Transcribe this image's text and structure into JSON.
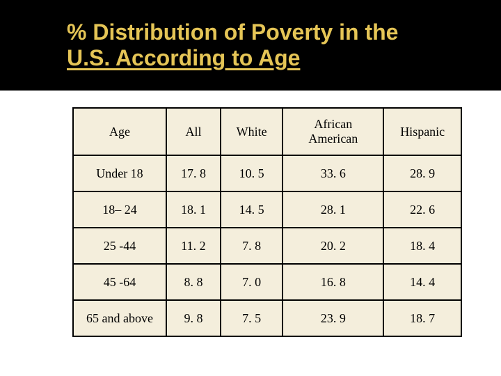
{
  "title": {
    "line1": "% Distribution of Poverty in the",
    "line2": "U.S. According to Age",
    "color": "#e5c556",
    "fontsize": 32,
    "band_background": "#000000"
  },
  "table": {
    "background_color": "#f4eedc",
    "border_color": "#000000",
    "border_width": 2,
    "cell_fontsize": 18,
    "text_color": "#000000",
    "columns": [
      {
        "key": "age",
        "label": "Age",
        "width_pct": 24
      },
      {
        "key": "all",
        "label": "All",
        "width_pct": 14
      },
      {
        "key": "white",
        "label": "White",
        "width_pct": 16
      },
      {
        "key": "africanamerican",
        "label": "African\nAmerican",
        "width_pct": 26
      },
      {
        "key": "hispanic",
        "label": "Hispanic",
        "width_pct": 20
      }
    ],
    "rows": [
      {
        "age": "Under 18",
        "all": "17. 8",
        "white": "10. 5",
        "africanamerican": "33. 6",
        "hispanic": "28. 9"
      },
      {
        "age": "18– 24",
        "all": "18. 1",
        "white": "14. 5",
        "africanamerican": "28. 1",
        "hispanic": "22. 6"
      },
      {
        "age": "25 -44",
        "all": "11. 2",
        "white": "7. 8",
        "africanamerican": "20. 2",
        "hispanic": "18. 4"
      },
      {
        "age": "45 -64",
        "all": "8. 8",
        "white": "7. 0",
        "africanamerican": "16. 8",
        "hispanic": "14. 4"
      },
      {
        "age": "65 and above",
        "all": "9. 8",
        "white": "7. 5",
        "africanamerican": "23. 9",
        "hispanic": "18. 7"
      }
    ]
  }
}
